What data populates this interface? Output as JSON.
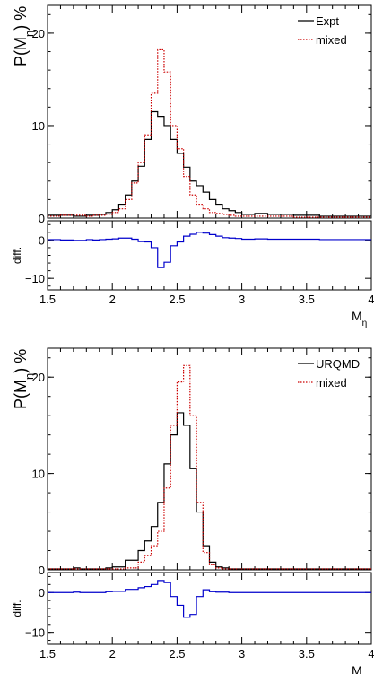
{
  "chart_data": [
    {
      "type": "line",
      "step": true,
      "ylabel": "P(M_η) %",
      "ylim": [
        0,
        23
      ],
      "xlim": [
        1.5,
        4
      ],
      "x_ticks": [
        "1.5",
        "2",
        "2.5",
        "3",
        "3.5",
        "4"
      ],
      "y_ticks": [
        "0",
        "10",
        "20"
      ],
      "legend": {
        "placement": "top-right",
        "entries": [
          "Expt",
          "mixed"
        ]
      },
      "series": [
        {
          "name": "Expt",
          "color": "#000000",
          "style": "solid",
          "bin_edges": [
            1.5,
            1.6,
            1.7,
            1.8,
            1.85,
            1.9,
            1.95,
            2.0,
            2.05,
            2.1,
            2.15,
            2.2,
            2.25,
            2.3,
            2.35,
            2.4,
            2.45,
            2.5,
            2.55,
            2.6,
            2.65,
            2.7,
            2.75,
            2.8,
            2.85,
            2.9,
            2.95,
            3.0,
            3.1,
            3.2,
            3.4,
            3.6,
            4.0
          ],
          "values": [
            0.3,
            0.3,
            0.2,
            0.3,
            0.3,
            0.4,
            0.6,
            0.9,
            1.5,
            2.5,
            4.0,
            5.6,
            8.5,
            11.5,
            11.0,
            10.0,
            8.5,
            7.0,
            5.5,
            4.0,
            3.5,
            2.8,
            2.0,
            1.5,
            1.0,
            0.8,
            0.6,
            0.4,
            0.5,
            0.4,
            0.3,
            0.2
          ]
        },
        {
          "name": "mixed",
          "color": "#cc0000",
          "style": "dotted",
          "bin_edges": [
            1.5,
            1.6,
            1.7,
            1.8,
            1.85,
            1.9,
            1.95,
            2.0,
            2.05,
            2.1,
            2.15,
            2.2,
            2.25,
            2.3,
            2.35,
            2.4,
            2.45,
            2.5,
            2.55,
            2.6,
            2.65,
            2.7,
            2.75,
            2.8,
            2.85,
            2.9,
            2.95,
            3.0,
            3.1,
            3.2,
            3.4,
            3.6,
            4.0
          ],
          "values": [
            0.2,
            0.3,
            0.3,
            0.2,
            0.3,
            0.3,
            0.4,
            0.6,
            1.0,
            2.0,
            3.8,
            6.0,
            9.0,
            13.5,
            18.2,
            15.8,
            10.0,
            7.5,
            4.5,
            2.5,
            1.5,
            1.0,
            0.6,
            0.5,
            0.4,
            0.3,
            0.2,
            0.2,
            0.2,
            0.2,
            0.1,
            0.1
          ]
        }
      ],
      "diff": {
        "ylabel": "diff.",
        "ylim": [
          -13,
          5
        ],
        "y_ticks": [
          "0",
          "−10"
        ],
        "xlabel": "M_η",
        "color": "#0000cc",
        "bin_edges": [
          1.5,
          1.6,
          1.7,
          1.8,
          1.85,
          1.9,
          1.95,
          2.0,
          2.05,
          2.1,
          2.15,
          2.2,
          2.25,
          2.3,
          2.35,
          2.4,
          2.45,
          2.5,
          2.55,
          2.6,
          2.65,
          2.7,
          2.75,
          2.8,
          2.85,
          2.9,
          2.95,
          3.0,
          3.1,
          3.2,
          3.4,
          3.6,
          4.0
        ],
        "values": [
          0.1,
          0.0,
          -0.1,
          0.1,
          0.0,
          0.1,
          0.2,
          0.3,
          0.5,
          0.5,
          0.2,
          -0.4,
          -0.5,
          -2.0,
          -7.2,
          -5.8,
          -1.5,
          -0.5,
          1.0,
          1.5,
          2.0,
          1.8,
          1.4,
          1.0,
          0.6,
          0.5,
          0.4,
          0.2,
          0.3,
          0.2,
          0.2,
          0.1
        ]
      }
    },
    {
      "type": "line",
      "step": true,
      "ylabel": "P(M_η) %",
      "ylim": [
        0,
        23
      ],
      "xlim": [
        1.5,
        4
      ],
      "x_ticks": [
        "1.5",
        "2",
        "2.5",
        "3",
        "3.5",
        "4"
      ],
      "y_ticks": [
        "0",
        "10",
        "20"
      ],
      "legend": {
        "placement": "top-right",
        "entries": [
          "URQMD",
          "mixed"
        ]
      },
      "series": [
        {
          "name": "URQMD",
          "color": "#000000",
          "style": "solid",
          "bin_edges": [
            1.5,
            1.7,
            1.75,
            1.8,
            1.95,
            2.0,
            2.1,
            2.2,
            2.25,
            2.3,
            2.35,
            2.4,
            2.45,
            2.5,
            2.55,
            2.6,
            2.65,
            2.7,
            2.75,
            2.8,
            2.85,
            2.9,
            3.0,
            3.2,
            4.0
          ],
          "values": [
            0.1,
            0.2,
            0.1,
            0.1,
            0.2,
            0.3,
            1.0,
            2.0,
            3.0,
            4.5,
            7.0,
            11.0,
            14.0,
            16.3,
            15.0,
            10.5,
            6.0,
            2.5,
            0.8,
            0.3,
            0.2,
            0.1,
            0.1,
            0.1
          ]
        },
        {
          "name": "mixed",
          "color": "#cc0000",
          "style": "dotted",
          "bin_edges": [
            1.5,
            1.7,
            1.75,
            1.8,
            1.95,
            2.0,
            2.1,
            2.2,
            2.25,
            2.3,
            2.35,
            2.4,
            2.45,
            2.5,
            2.55,
            2.6,
            2.65,
            2.7,
            2.75,
            2.8,
            2.85,
            2.9,
            3.0,
            3.2,
            4.0
          ],
          "values": [
            0.1,
            0.1,
            0.1,
            0.1,
            0.1,
            0.1,
            0.2,
            0.8,
            1.5,
            2.5,
            4.0,
            8.5,
            15.0,
            19.5,
            21.2,
            16.0,
            7.0,
            1.8,
            0.6,
            0.2,
            0.1,
            0.1,
            0.1,
            0.1
          ]
        }
      ],
      "diff": {
        "ylabel": "diff.",
        "ylim": [
          -13,
          5
        ],
        "y_ticks": [
          "0",
          "−10"
        ],
        "xlabel": "M_η",
        "color": "#0000cc",
        "bin_edges": [
          1.5,
          1.7,
          1.75,
          1.8,
          1.95,
          2.0,
          2.1,
          2.2,
          2.25,
          2.3,
          2.35,
          2.4,
          2.45,
          2.5,
          2.55,
          2.6,
          2.65,
          2.7,
          2.75,
          2.8,
          2.85,
          2.9,
          3.0,
          3.2,
          4.0
        ],
        "values": [
          0.0,
          0.1,
          0.0,
          0.0,
          0.2,
          0.3,
          0.8,
          1.2,
          1.5,
          2.0,
          3.0,
          2.5,
          -1.0,
          -3.2,
          -6.2,
          -5.5,
          -1.0,
          0.7,
          0.2,
          0.1,
          0.1,
          0.0,
          0.0,
          0.0
        ]
      }
    }
  ]
}
